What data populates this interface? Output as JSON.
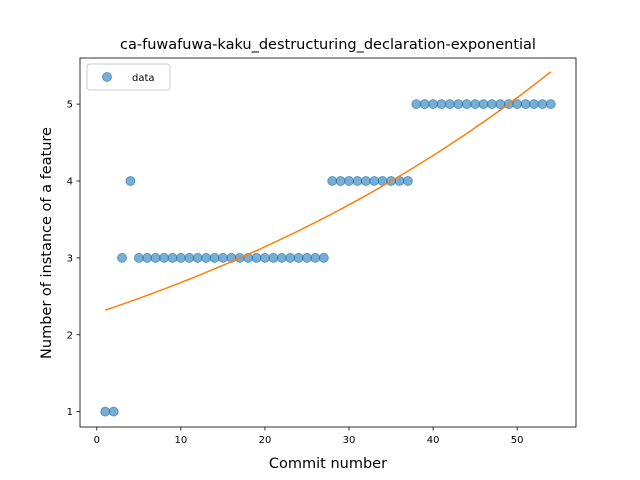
{
  "chart_data": {
    "type": "scatter",
    "title": "ca-fuwafuwa-kaku_destructuring_declaration-exponential",
    "xlabel": "Commit number",
    "ylabel": "Number of instance of a feature",
    "xlim": [
      -2,
      57
    ],
    "ylim": [
      0.8,
      5.6
    ],
    "xticks": [
      0,
      10,
      20,
      30,
      40,
      50
    ],
    "yticks": [
      1,
      2,
      3,
      4,
      5
    ],
    "grid": false,
    "legend_position": "top-left",
    "series": [
      {
        "name": "data",
        "kind": "scatter",
        "color": "#1f77b4",
        "x": [
          1,
          2,
          3,
          4,
          5,
          6,
          7,
          8,
          9,
          10,
          11,
          12,
          13,
          14,
          15,
          16,
          17,
          18,
          19,
          20,
          21,
          22,
          23,
          24,
          25,
          26,
          27,
          28,
          29,
          30,
          31,
          32,
          33,
          34,
          35,
          36,
          37,
          38,
          39,
          40,
          41,
          42,
          43,
          44,
          45,
          46,
          47,
          48,
          49,
          50,
          51,
          52,
          53,
          54
        ],
        "y": [
          1,
          1,
          3,
          4,
          3,
          3,
          3,
          3,
          3,
          3,
          3,
          3,
          3,
          3,
          3,
          3,
          3,
          3,
          3,
          3,
          3,
          3,
          3,
          3,
          3,
          3,
          3,
          4,
          4,
          4,
          4,
          4,
          4,
          4,
          4,
          4,
          4,
          5,
          5,
          5,
          5,
          5,
          5,
          5,
          5,
          5,
          5,
          5,
          5,
          5,
          5,
          5,
          5,
          5
        ]
      },
      {
        "kind": "line",
        "color": "#ff7f0e",
        "x": [
          1,
          54
        ],
        "y": [
          2.32,
          5.42
        ]
      }
    ]
  }
}
